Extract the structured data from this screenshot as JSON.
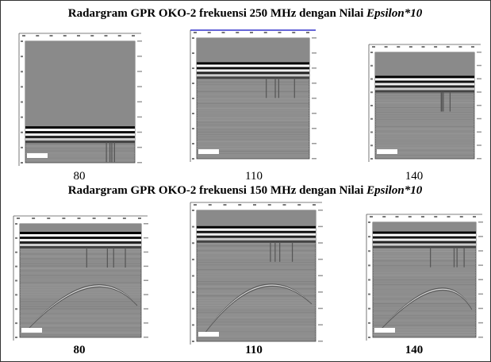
{
  "sections": [
    {
      "title": "Radargram GPR OKO-2 frekuensi 250 MHz dengan Nilai ",
      "title_emphasis": "Epsilon*10",
      "panels": [
        {
          "label": "80"
        },
        {
          "label": "110"
        },
        {
          "label": "140"
        }
      ]
    },
    {
      "title": "Radargram GPR OKO-2 frekuensi 150 MHz dengan Nilai ",
      "title_emphasis": "Epsilon*10",
      "panels": [
        {
          "label": "80"
        },
        {
          "label": "110"
        },
        {
          "label": "140"
        }
      ]
    }
  ]
}
